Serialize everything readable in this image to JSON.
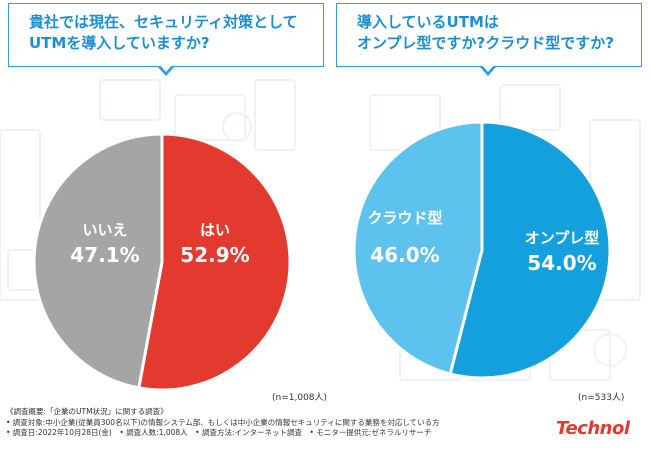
{
  "questions": {
    "q1": [
      "貴社では現在、セキュリティ対策として",
      "UTMを導入していますか?"
    ],
    "q2": [
      "導入しているUTMは",
      "オンプレ型ですか?クラウド型ですか?"
    ]
  },
  "chart_data": [
    {
      "type": "pie",
      "slices": [
        {
          "label": "はい",
          "value": 52.9,
          "value_text": "52.9%",
          "color": "#e23a2e"
        },
        {
          "label": "いいえ",
          "value": 47.1,
          "value_text": "47.1%",
          "color": "#a5a5a5"
        }
      ],
      "n_text": "(n=1,008人)"
    },
    {
      "type": "pie",
      "slices": [
        {
          "label": "オンプレ型",
          "value": 54.0,
          "value_text": "54.0%",
          "color": "#13a0dd"
        },
        {
          "label": "クラウド型",
          "value": 46.0,
          "value_text": "46.0%",
          "color": "#5ec2ef"
        }
      ],
      "n_text": "(n=533人)"
    }
  ],
  "footer": {
    "lines": [
      "《調査概要:「企業のUTM状況」に関する調査》",
      "• 調査対象:中小企業(従業員300名以下)の情報システム部、もしくは中小企業の情報セキュリティに関する業務を対応している方",
      "• 調査日:2022年10月28日(金)　• 調査人数:1,008人　• 調査方法:インターネット調査　• モニター提供元:ゼネラルリサーチ"
    ]
  },
  "logo": "Technol",
  "colors": {
    "accent_blue": "#1c8fd0",
    "brand_red": "#e23a2e"
  }
}
